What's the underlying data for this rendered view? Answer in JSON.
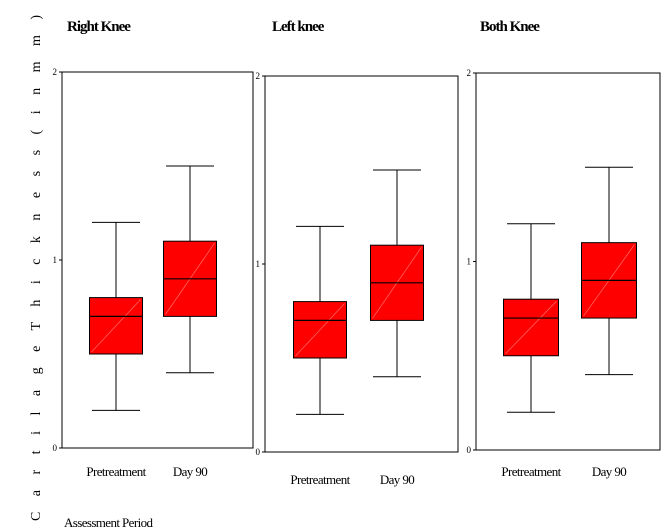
{
  "chart_data": {
    "type": "box",
    "ylabel": "C a r t i l a g e   T h i c k n e s s   ( i n   m m )",
    "xlabel": "Assessment Period",
    "ylim": [
      0,
      2
    ],
    "yticks": [
      "0",
      "1",
      "2"
    ],
    "box_color": "#ff0000",
    "panels": [
      {
        "title": "Right Knee",
        "categories": [
          "Pretreatment",
          "Day 90"
        ],
        "boxes": [
          {
            "min": 0.2,
            "q1": 0.5,
            "median": 0.7,
            "q3": 0.8,
            "max": 1.2
          },
          {
            "min": 0.4,
            "q1": 0.7,
            "median": 0.9,
            "q3": 1.1,
            "max": 1.5
          }
        ]
      },
      {
        "title": "Left knee",
        "categories": [
          "Pretreatment",
          "Day 90"
        ],
        "boxes": [
          {
            "min": 0.2,
            "q1": 0.5,
            "median": 0.7,
            "q3": 0.8,
            "max": 1.2
          },
          {
            "min": 0.4,
            "q1": 0.7,
            "median": 0.9,
            "q3": 1.1,
            "max": 1.5
          }
        ]
      },
      {
        "title": "Both Knee",
        "categories": [
          "Pretreatment",
          "Day 90"
        ],
        "boxes": [
          {
            "min": 0.2,
            "q1": 0.5,
            "median": 0.7,
            "q3": 0.8,
            "max": 1.2
          },
          {
            "min": 0.4,
            "q1": 0.7,
            "median": 0.9,
            "q3": 1.1,
            "max": 1.5
          }
        ]
      }
    ]
  }
}
